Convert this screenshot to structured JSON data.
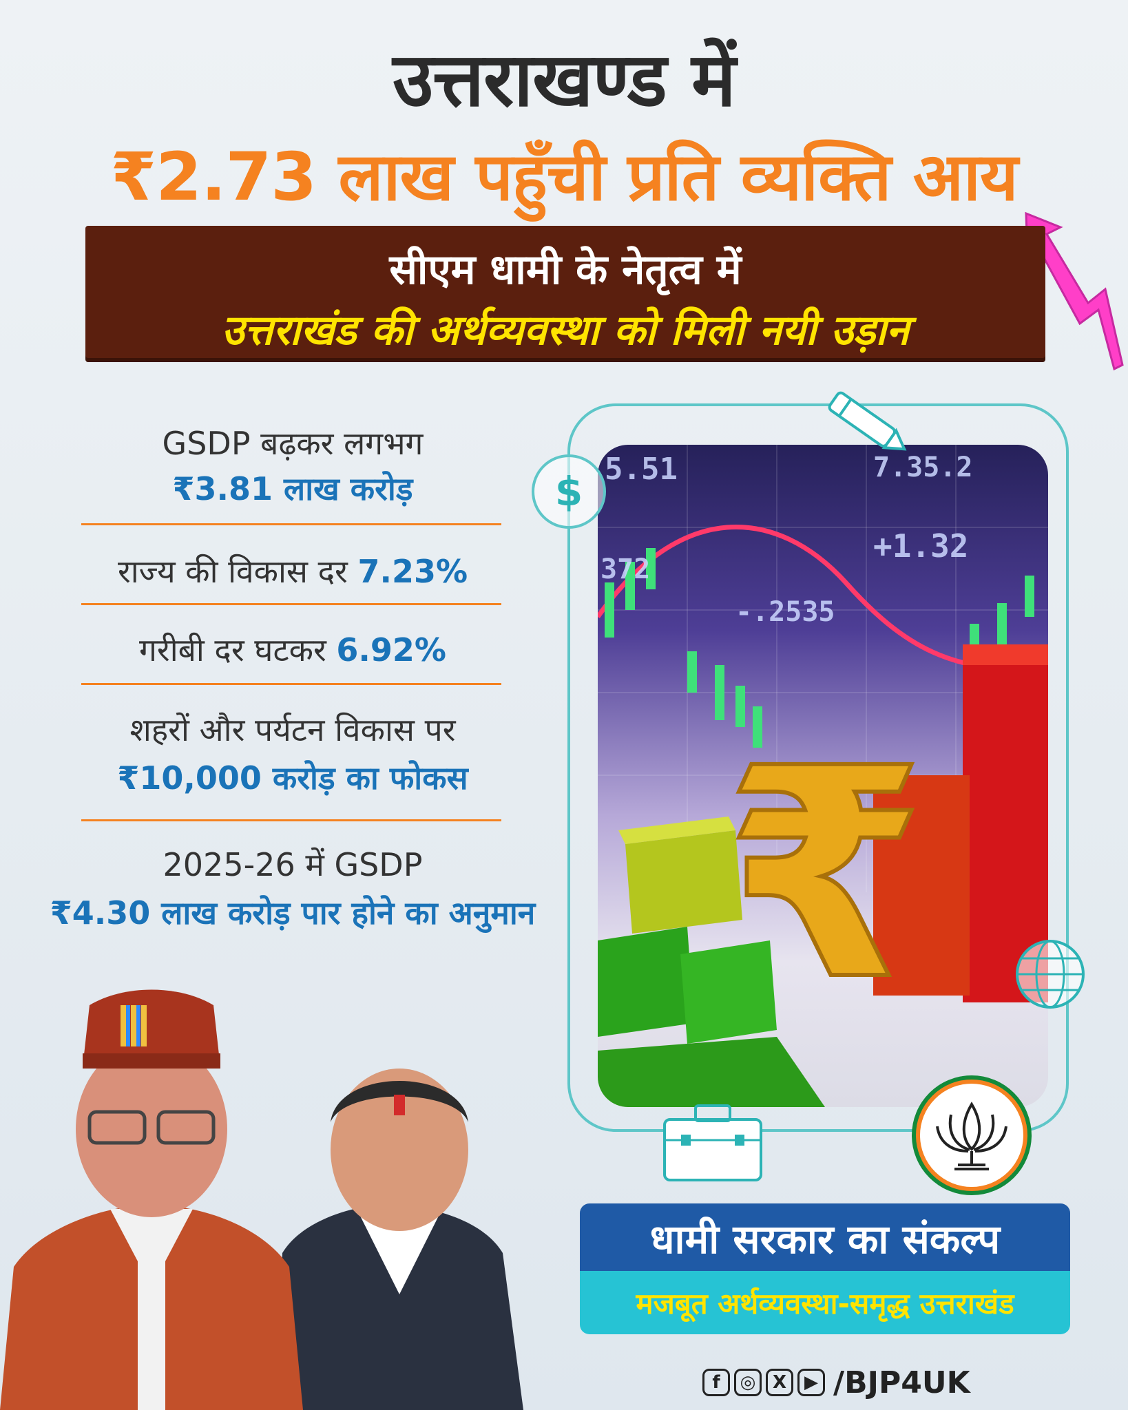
{
  "header": {
    "line1": "उत्तराखण्ड में",
    "line2": "₹2.73 लाख पहुँची प्रति व्यक्ति आय"
  },
  "banner": {
    "line1": "सीएम धामी के नेतृत्व में",
    "line2": "उत्तराखंड की अर्थव्यवस्था को मिली नयी उड़ान"
  },
  "stats": [
    {
      "text": "GSDP बढ़कर लगभग",
      "highlight": "₹3.81 लाख करोड़"
    },
    {
      "text": "राज्य की विकास दर ",
      "highlight": "7.23%"
    },
    {
      "text": "गरीबी दर घटकर ",
      "highlight": "6.92%"
    },
    {
      "text": "शहरों और पर्यटन विकास पर",
      "highlight": "₹10,000 करोड़ का फोकस"
    },
    {
      "text": "2025-26 में GSDP",
      "highlight": "₹4.30 लाख करोड़ पार होने का अनुमान"
    }
  ],
  "photo": {
    "ticker1": "5.51",
    "ticker2": "7.35.2",
    "ticker3": "+1.32",
    "ticker4": "-.2535",
    "ticker5": "372",
    "rupee": "₹"
  },
  "icons": {
    "dollar": "$",
    "globe": "globe-icon",
    "pencil": "pencil-icon",
    "briefcase": "briefcase-icon"
  },
  "footer": {
    "resolve": "धामी सरकार का संकल्प",
    "slogan": "मजबूत अर्थव्यवस्था-समृद्ध उत्तराखंड",
    "social_icons": [
      "f",
      "◎",
      "X",
      "▶"
    ],
    "handle": "/BJP4UK"
  },
  "colors": {
    "orange": "#f58220",
    "brown": "#5b1f0e",
    "yellow": "#ffe400",
    "blue": "#1a73b8",
    "cyan": "#26c3d4"
  }
}
